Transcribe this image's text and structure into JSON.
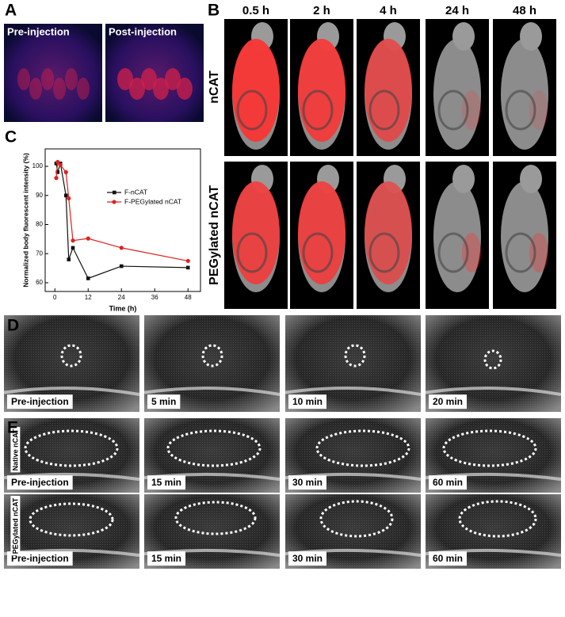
{
  "panels": {
    "A": {
      "label": "A",
      "images": [
        "Pre-injection",
        "Post-injection"
      ]
    },
    "B": {
      "label": "B",
      "times": [
        "0.5 h",
        "2 h",
        "4 h",
        "24 h",
        "48 h"
      ],
      "rows": [
        "nCAT",
        "PEGylated nCAT"
      ]
    },
    "C": {
      "label": "C"
    },
    "D": {
      "label": "D",
      "images": [
        "Pre-injection",
        "5 min",
        "10 min",
        "20 min"
      ]
    },
    "E": {
      "label": "E",
      "rows": [
        {
          "name": "Native nCAT",
          "images": [
            "Pre-injection",
            "15 min",
            "30 min",
            "60 min"
          ]
        },
        {
          "name": "PEGylated nCAT",
          "images": [
            "Pre-injection",
            "15 min",
            "30 min",
            "60 min"
          ]
        }
      ]
    }
  },
  "chart_data": {
    "type": "line",
    "xlabel": "Time (h)",
    "ylabel": "Normalized body fluorescent intensity (%)",
    "x": [
      0.5,
      1,
      2,
      4,
      5,
      6.5,
      12,
      24,
      48
    ],
    "series": [
      {
        "name": "F-nCAT",
        "color": "#111111",
        "marker": "square",
        "values": [
          101,
          98,
          101,
          90,
          68,
          72,
          61.5,
          65.7,
          65.2
        ]
      },
      {
        "name": "F-PEGylated nCAT",
        "color": "#e02020",
        "marker": "circle",
        "values": [
          96,
          101.5,
          100.5,
          98,
          89,
          74.5,
          75.2,
          72,
          67.5
        ]
      }
    ],
    "xlim": [
      -3.5,
      52.5
    ],
    "ylim": [
      57,
      106
    ],
    "xticks": [
      0,
      12,
      24,
      36,
      48
    ],
    "yticks": [
      60,
      70,
      80,
      90,
      100
    ],
    "legend": "center right"
  }
}
